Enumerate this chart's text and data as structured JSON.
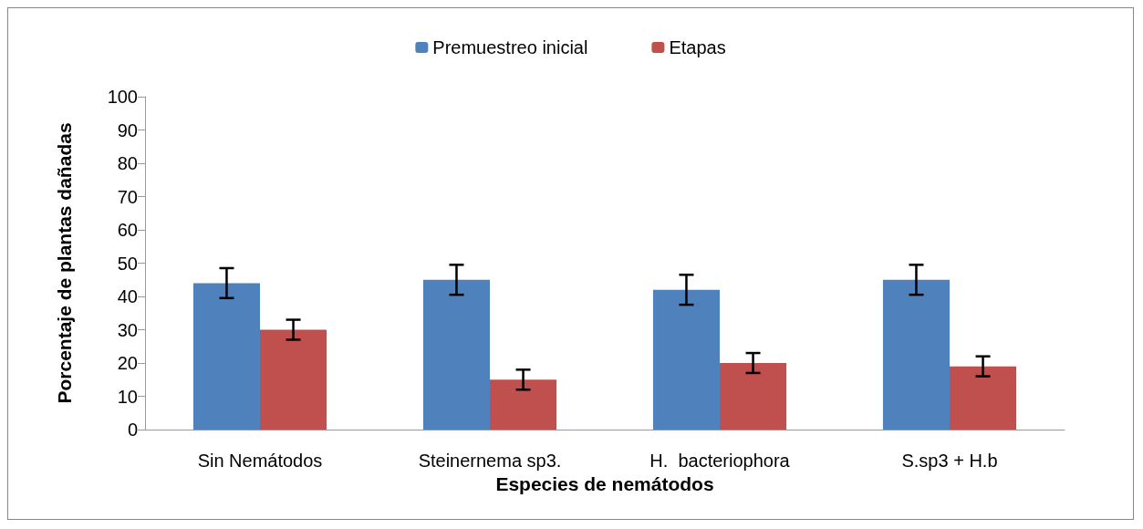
{
  "chart_data": {
    "type": "bar",
    "xlabel": "Especies de nemátodos",
    "ylabel": "Porcentaje de plantas dañadas",
    "categories": [
      "Sin Nemátodos",
      "Steinernema sp3.",
      "H.  bacteriophora",
      "S.sp3 + H.b"
    ],
    "series": [
      {
        "name": "Premuestreo inicial",
        "color": "#4f81bd",
        "values": [
          44,
          45,
          42,
          45
        ],
        "errors": [
          4.5,
          4.5,
          4.5,
          4.5
        ]
      },
      {
        "name": "Etapas",
        "color": "#c0504d",
        "values": [
          30,
          15,
          20,
          19
        ],
        "errors": [
          3,
          3,
          3,
          3
        ]
      }
    ],
    "ylim": [
      0,
      100
    ],
    "yticks": [
      0,
      10,
      20,
      30,
      40,
      50,
      60,
      70,
      80,
      90,
      100
    ],
    "grid": false,
    "legend": "top"
  }
}
